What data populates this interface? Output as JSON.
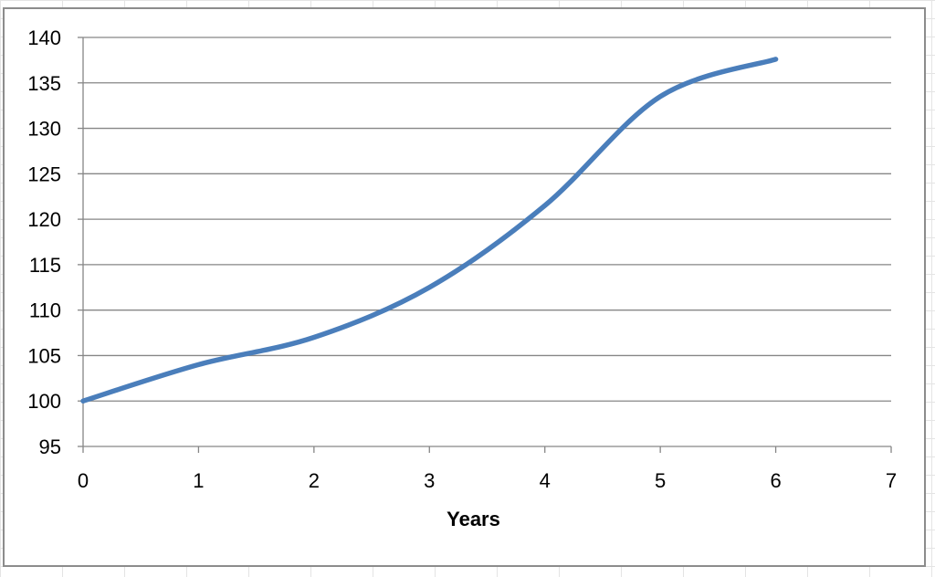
{
  "chart_data": {
    "type": "line",
    "title": "",
    "xlabel": "Years",
    "ylabel": "",
    "xlim": [
      0,
      7
    ],
    "ylim": [
      95,
      140
    ],
    "x_ticks": [
      "0",
      "1",
      "2",
      "3",
      "4",
      "5",
      "6",
      "7"
    ],
    "y_ticks": [
      "95",
      "100",
      "105",
      "110",
      "115",
      "120",
      "125",
      "130",
      "135",
      "140"
    ],
    "grid": "horizontal",
    "legend": "none",
    "series": [
      {
        "x": [
          0,
          1,
          2,
          3,
          4,
          5,
          6
        ],
        "values": [
          100,
          104,
          107,
          112.5,
          121.5,
          133.5,
          137.6
        ],
        "color": "#4a7ebb"
      }
    ]
  }
}
